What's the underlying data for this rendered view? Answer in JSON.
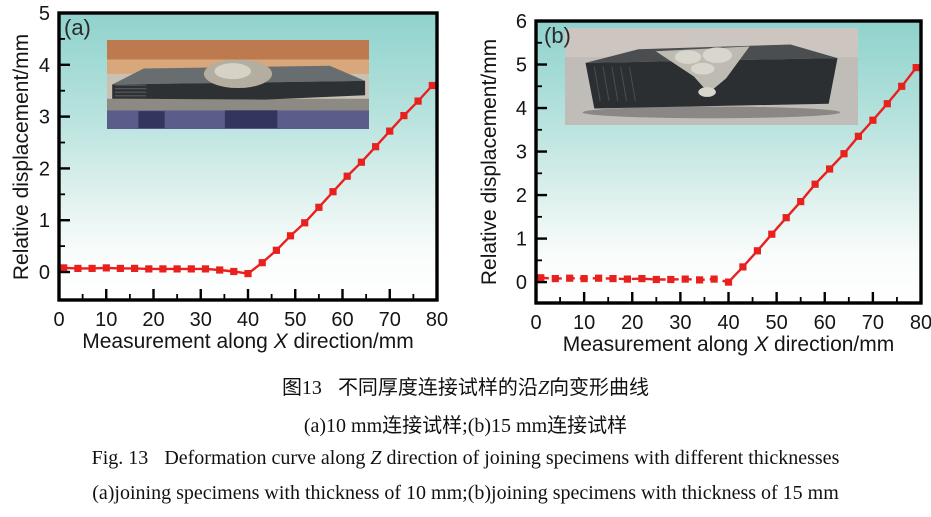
{
  "colors": {
    "line": "#e8211f",
    "axis": "#000000",
    "text": "#151515",
    "plot_bg_stops": [
      [
        0,
        "#8fd2cd"
      ],
      [
        0.35,
        "#b7e2dd"
      ],
      [
        0.62,
        "#ddf0ed"
      ],
      [
        0.82,
        "#f8fcfb"
      ],
      [
        1,
        "#ffffff"
      ]
    ]
  },
  "chart_data": [
    {
      "type": "line",
      "panel_label": "(a)",
      "ylabel": "Relative displacement/mm",
      "xlabel_pre": "Measurement along ",
      "xlabel_italic": "X",
      "xlabel_post": " direction/mm",
      "xlim": [
        0,
        80
      ],
      "ylim": [
        -0.54,
        5.0
      ],
      "xticks": [
        0,
        10,
        20,
        30,
        40,
        50,
        60,
        70,
        80
      ],
      "yticks": [
        0,
        1,
        2,
        3,
        4,
        5
      ],
      "x_minor": 5,
      "y_minor": 0.5,
      "marker": "square",
      "legend": "none",
      "grid": false,
      "style": {
        "dash_until_x": null
      },
      "x": [
        1,
        4,
        7,
        10,
        13,
        16,
        19,
        22,
        25,
        28,
        31,
        34,
        37,
        40,
        43,
        46,
        49,
        52,
        55,
        58,
        61,
        64,
        67,
        70,
        73,
        76,
        79
      ],
      "y": [
        0.08,
        0.07,
        0.07,
        0.08,
        0.07,
        0.07,
        0.06,
        0.06,
        0.06,
        0.06,
        0.06,
        0.04,
        0.01,
        -0.03,
        0.18,
        0.42,
        0.7,
        0.95,
        1.25,
        1.55,
        1.85,
        2.12,
        2.42,
        2.72,
        3.02,
        3.3,
        3.6
      ]
    },
    {
      "type": "line",
      "panel_label": "(b)",
      "ylabel": "Relative displacement/mm",
      "xlabel_pre": "Measurement along ",
      "xlabel_italic": "X",
      "xlabel_post": " direction/mm",
      "xlim": [
        0,
        80
      ],
      "ylim": [
        -0.48,
        6.0
      ],
      "xticks": [
        0,
        10,
        20,
        30,
        40,
        50,
        60,
        70,
        80
      ],
      "yticks": [
        0,
        1,
        2,
        3,
        4,
        5,
        6
      ],
      "x_minor": 5,
      "y_minor": 0.5,
      "marker": "square",
      "legend": "none",
      "grid": false,
      "style": {
        "dash_until_x": 40
      },
      "x": [
        1,
        4,
        7,
        10,
        13,
        16,
        19,
        22,
        25,
        28,
        31,
        34,
        37,
        40,
        43,
        46,
        49,
        52,
        55,
        58,
        61,
        64,
        67,
        70,
        73,
        76,
        79
      ],
      "y": [
        0.1,
        0.08,
        0.09,
        0.08,
        0.09,
        0.08,
        0.07,
        0.08,
        0.06,
        0.06,
        0.07,
        0.05,
        0.07,
        0.0,
        0.35,
        0.72,
        1.1,
        1.48,
        1.85,
        2.25,
        2.6,
        2.95,
        3.35,
        3.72,
        4.1,
        4.5,
        4.93
      ]
    }
  ],
  "insets": [
    {
      "palette": {
        "sky": "#bd7a4e",
        "sky2": "#d8a87c",
        "table": "#c9c2b4",
        "base": "#8d8a84",
        "strip1": "#5a5c8a",
        "strip2": "#33355e",
        "plate": "#2e3134",
        "plate_top": "#686d70",
        "weld": "#b3ae9f",
        "weld_hi": "#d6d2c5"
      }
    },
    {
      "palette": {
        "bg1": "#c0bcb7",
        "bg2": "#cdc5bf",
        "shadow": "#8a8784",
        "block": "#2c2f31",
        "block_top": "#4a4e50",
        "weld": "#bdbbb2",
        "weld_hi": "#d8d6cd"
      }
    }
  ],
  "caption": {
    "zh_fig": "图13",
    "zh_pre": "不同厚度连接试样的沿",
    "zh_italic": "Z",
    "zh_post": "向变形曲线",
    "zh_sub": "(a)10 mm连接试样;(b)15 mm连接试样",
    "en_fig": "Fig. 13",
    "en_pre": "Deformation curve along ",
    "en_italic": "Z",
    "en_post": " direction of joining specimens with different thicknesses",
    "en_sub": "(a)joining specimens with thickness of 10 mm;(b)joining specimens with thickness of 15 mm"
  }
}
